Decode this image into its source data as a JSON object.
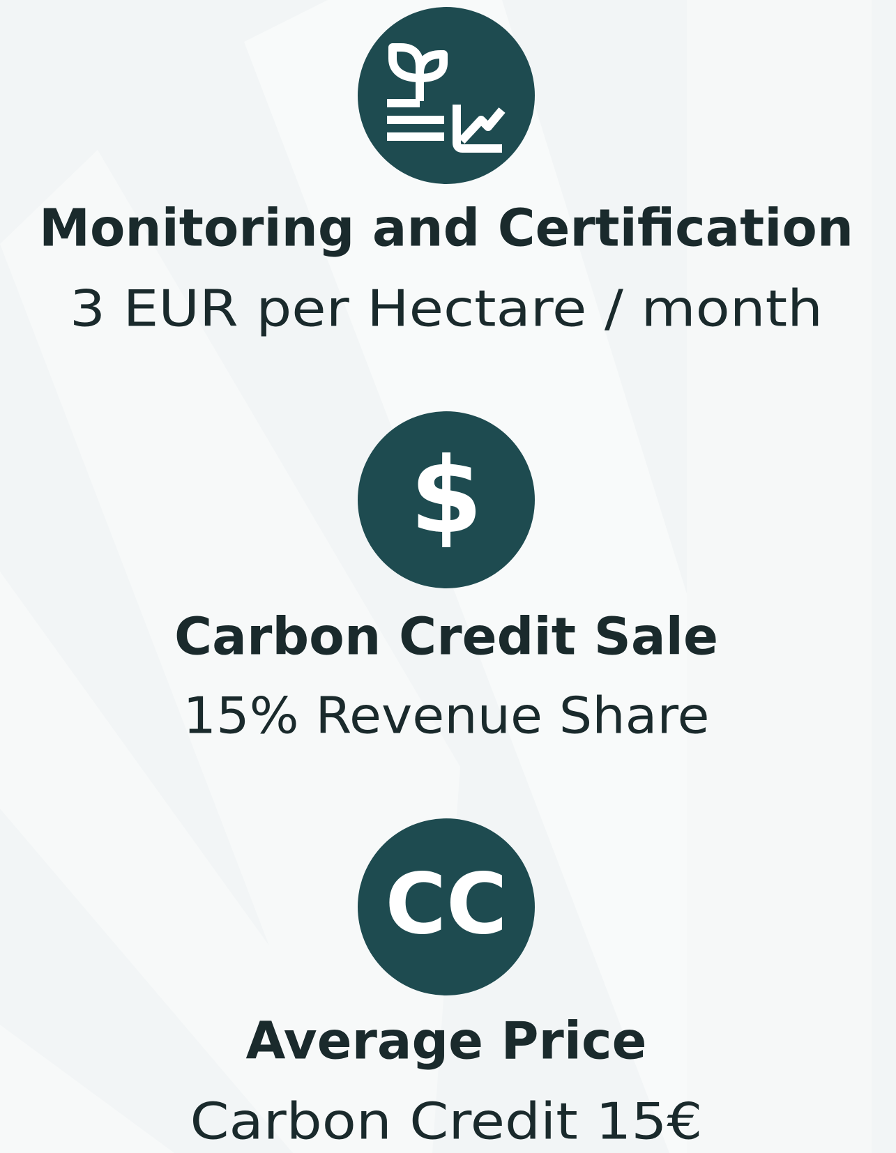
{
  "items": [
    {
      "title": "Monitoring and Certification",
      "subtitle": "3 EUR per Hectare / month"
    },
    {
      "icon_text": "$",
      "title": "Carbon Credit Sale",
      "subtitle": "15% Revenue Share"
    },
    {
      "icon_text": "CC",
      "title": "Average Price",
      "subtitle": "Carbon Credit 15€"
    }
  ]
}
